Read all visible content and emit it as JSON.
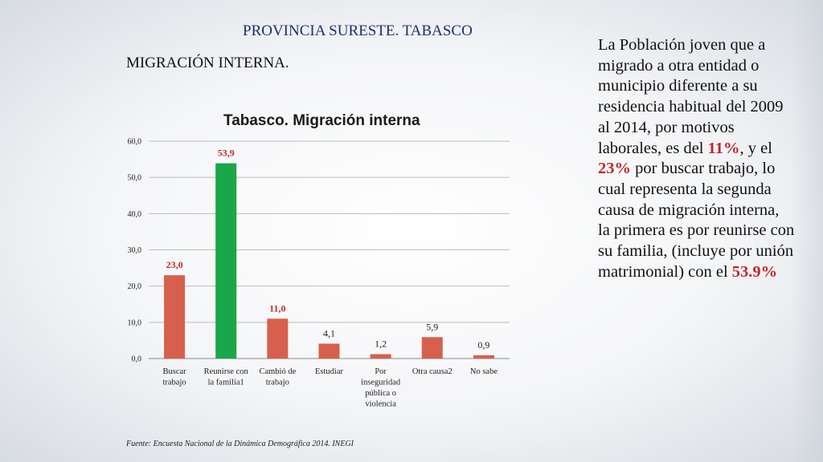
{
  "slide": {
    "title": "PROVINCIA SURESTE. TABASCO",
    "subtitle": "MIGRACIÓN INTERNA.",
    "source": "Fuente: Encuesta Nacional de la Dinámica Demográfica 2014. INEGI"
  },
  "side_text": {
    "part1": "La Población joven que a migrado a otra entidad o municipio diferente a su residencia habitual del 2009 al 2014,  por motivos laborales, es del ",
    "hl1": "11%",
    "part2": ", y el ",
    "hl2": "23%",
    "part3": " por buscar trabajo, lo cual representa la segunda causa de migración interna, la primera es por reunirse con su familia, (incluye por unión matrimonial) con el ",
    "hl3": "53.9%"
  },
  "chart_data": {
    "type": "bar",
    "title": "Tabasco. Migración interna",
    "categories": [
      [
        "Buscar",
        "trabajo"
      ],
      [
        "Reunirse con",
        "la familia1"
      ],
      [
        "Cambió de",
        "trabajo"
      ],
      [
        "Estudiar"
      ],
      [
        "Por",
        "inseguridad",
        "pública o",
        "violencia"
      ],
      [
        "Otra causa2"
      ],
      [
        "No sabe"
      ]
    ],
    "values": [
      23.0,
      53.9,
      11.0,
      4.1,
      1.2,
      5.9,
      0.9
    ],
    "value_labels": [
      "23,0",
      "53,9",
      "11,0",
      "4,1",
      "1,2",
      "5,9",
      "0,9"
    ],
    "highlight_labels": [
      true,
      true,
      true,
      false,
      false,
      false,
      false
    ],
    "bar_colors": [
      "#d6604d",
      "#1aa64a",
      "#d6604d",
      "#d6604d",
      "#d6604d",
      "#d6604d",
      "#d6604d"
    ],
    "yticks": [
      "0,0",
      "10,0",
      "20,0",
      "30,0",
      "40,0",
      "50,0",
      "60,0"
    ],
    "ylim": [
      0,
      60
    ],
    "grid": true,
    "colors": {
      "label_highlight": "#c0282d",
      "label_normal": "#222222"
    }
  }
}
